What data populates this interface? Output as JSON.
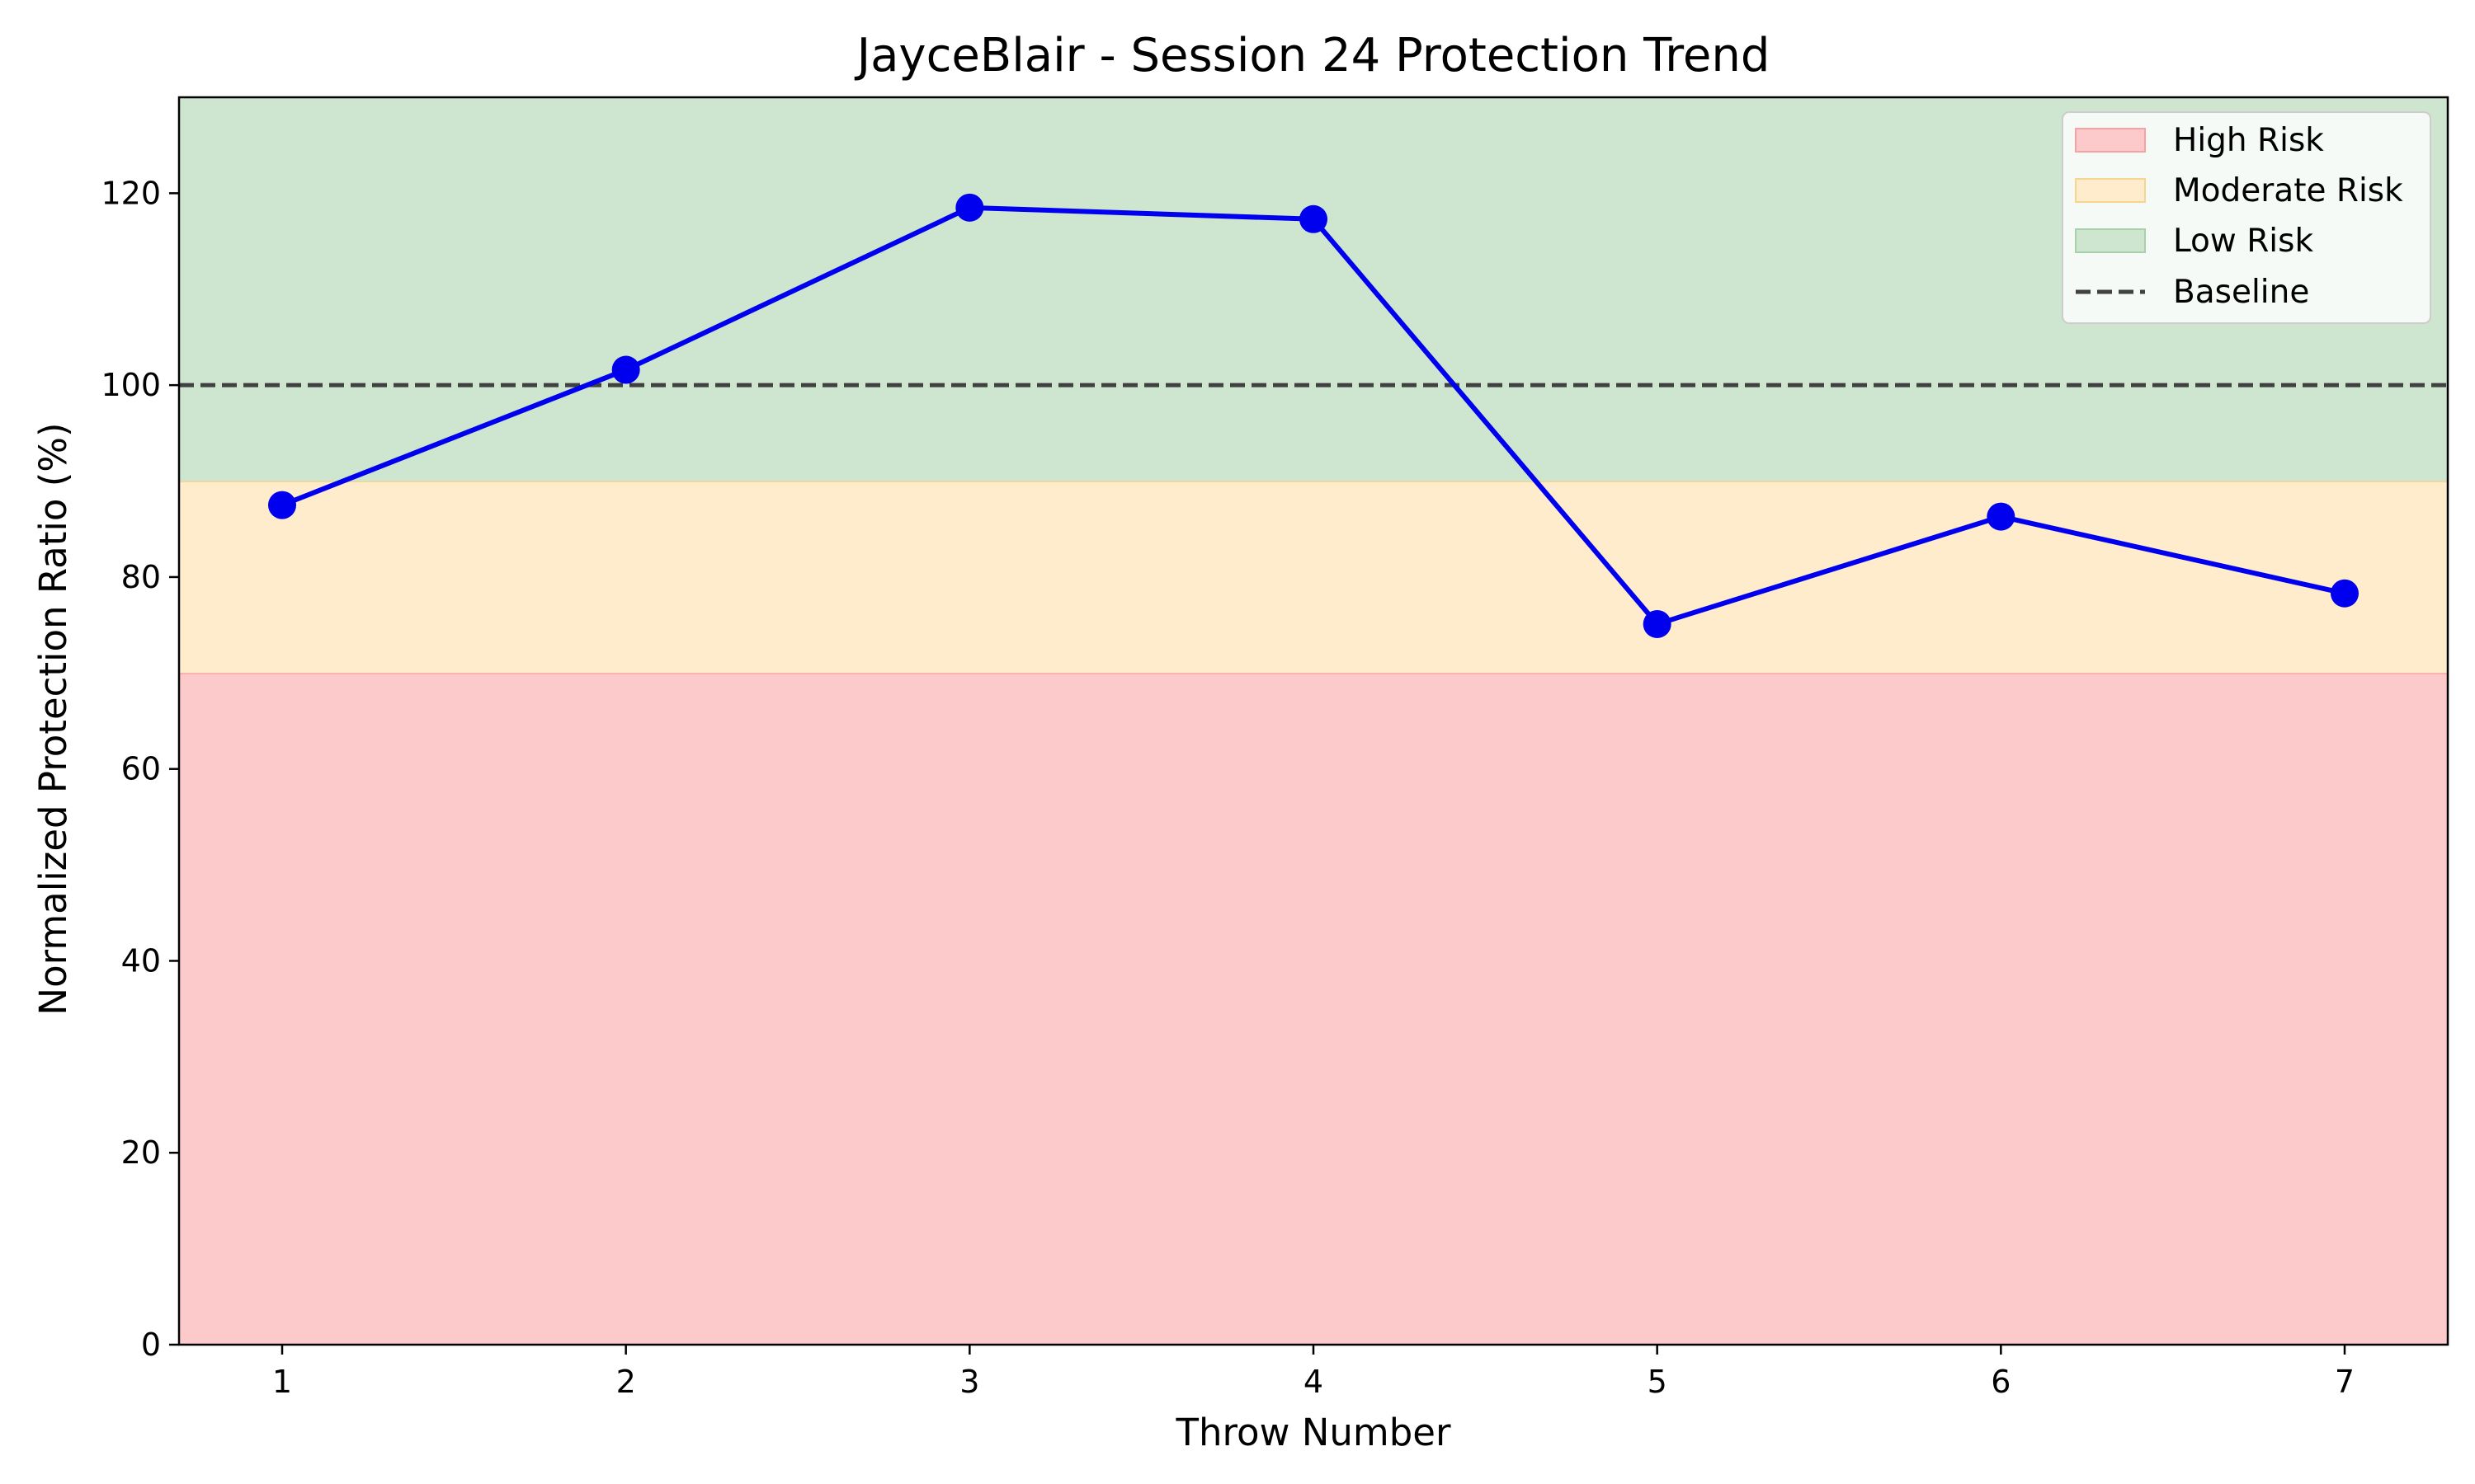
{
  "chart_data": {
    "type": "line",
    "title": "JayceBlair - Session 24 Protection Trend",
    "xlabel": "Throw Number",
    "ylabel": "Normalized Protection Ratio (%)",
    "x": [
      1,
      2,
      3,
      4,
      5,
      6,
      7
    ],
    "xlim": [
      0.7,
      7.3
    ],
    "ylim": [
      0,
      130
    ],
    "x_ticks": [
      "1",
      "2",
      "3",
      "4",
      "5",
      "6",
      "7"
    ],
    "y_ticks": [
      "0",
      "20",
      "40",
      "60",
      "80",
      "100",
      "120"
    ],
    "series": [
      {
        "values": [
          87.5,
          101.6,
          118.5,
          117.3,
          75.1,
          86.3,
          78.3
        ],
        "color": "#0000ee"
      }
    ],
    "bands": [
      {
        "name": "High Risk",
        "from": 0,
        "to": 70,
        "color": "#fccaca",
        "edge": "#f6a2a2"
      },
      {
        "name": "Moderate Risk",
        "from": 70,
        "to": 90,
        "color": "#feeccd",
        "edge": "#f7d48f"
      },
      {
        "name": "Low Risk",
        "from": 90,
        "to": 130,
        "color": "#cee5cf",
        "edge": "#a9d1a9"
      }
    ],
    "baseline": {
      "name": "Baseline",
      "value": 100,
      "color": "#404040"
    },
    "legend": {
      "position": "top-right",
      "entries": [
        "High Risk",
        "Moderate Risk",
        "Low Risk",
        "Baseline"
      ]
    },
    "grid": false
  }
}
